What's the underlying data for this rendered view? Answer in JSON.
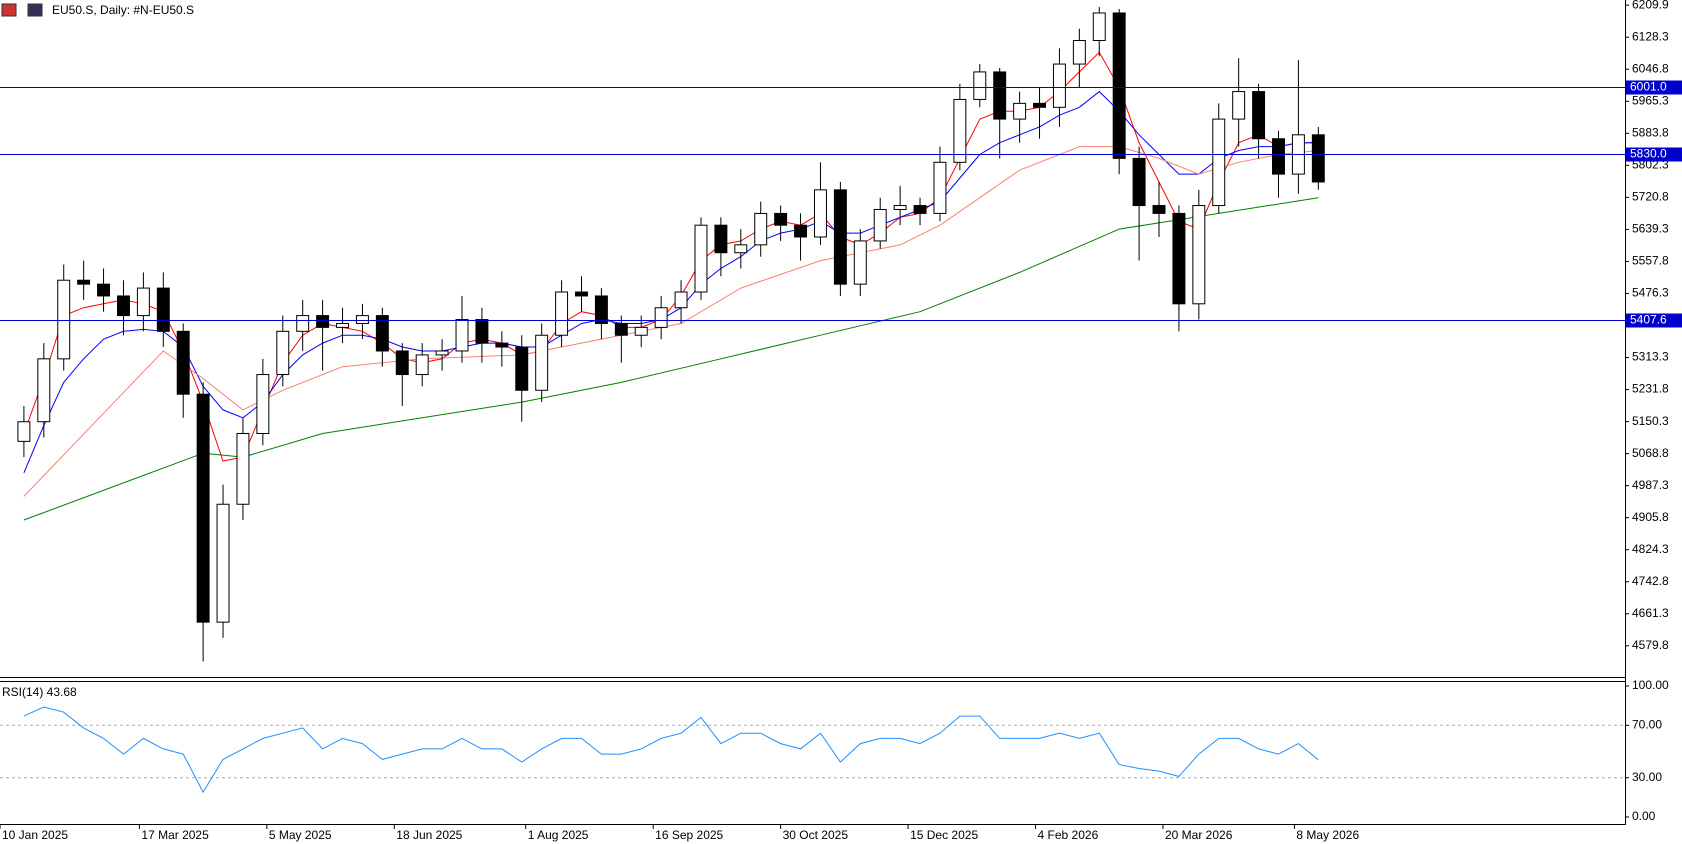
{
  "chart_data": [
    {
      "type": "candlestick",
      "title": "EU50.S, Daily:  #N-EU50.S",
      "x": [
        2,
        7,
        12,
        17,
        22,
        27,
        32,
        37,
        42,
        47,
        52,
        57,
        62,
        67,
        72,
        77,
        82,
        87,
        92,
        97,
        102,
        107,
        112,
        117,
        122,
        127,
        132,
        137,
        142,
        147,
        152,
        157,
        162,
        167,
        172,
        177,
        182,
        187,
        192,
        197,
        202,
        207,
        212,
        217,
        222,
        227,
        232,
        237,
        242,
        247,
        252,
        257,
        262,
        267,
        272,
        277,
        282,
        287,
        292,
        297,
        302,
        307,
        312,
        317,
        322,
        327
      ],
      "open": [
        5100,
        5150,
        5310,
        5510,
        5500,
        5470,
        5420,
        5490,
        5380,
        5220,
        4640,
        4940,
        5120,
        5270,
        5380,
        5420,
        5390,
        5400,
        5420,
        5330,
        5270,
        5320,
        5330,
        5410,
        5350,
        5340,
        5230,
        5370,
        5480,
        5470,
        5400,
        5370,
        5390,
        5440,
        5480,
        5650,
        5580,
        5600,
        5680,
        5650,
        5620,
        5740,
        5500,
        5610,
        5690,
        5700,
        5680,
        5810,
        5970,
        6040,
        5920,
        5960,
        5950,
        6060,
        6120,
        6190,
        5820,
        5700,
        5680,
        5450,
        5700,
        5920,
        5990,
        5870,
        5780,
        5880
      ],
      "high": [
        5190,
        5350,
        5550,
        5560,
        5540,
        5510,
        5530,
        5530,
        5400,
        5250,
        4990,
        5160,
        5310,
        5420,
        5460,
        5460,
        5440,
        5450,
        5440,
        5350,
        5350,
        5360,
        5470,
        5440,
        5380,
        5370,
        5400,
        5510,
        5520,
        5490,
        5420,
        5420,
        5470,
        5510,
        5670,
        5670,
        5640,
        5710,
        5700,
        5680,
        5810,
        5760,
        5640,
        5720,
        5750,
        5720,
        5850,
        6010,
        6060,
        6050,
        5990,
        6000,
        6100,
        6150,
        6205,
        6200,
        5850,
        5760,
        5700,
        5740,
        5960,
        6075,
        6010,
        5890,
        6070,
        5900
      ],
      "low": [
        5060,
        5110,
        5280,
        5460,
        5430,
        5370,
        5380,
        5340,
        5160,
        4540,
        4600,
        4900,
        5090,
        5240,
        5330,
        5280,
        5350,
        5360,
        5290,
        5190,
        5240,
        5280,
        5300,
        5300,
        5290,
        5150,
        5200,
        5340,
        5430,
        5360,
        5300,
        5340,
        5360,
        5400,
        5460,
        5520,
        5540,
        5570,
        5610,
        5560,
        5600,
        5470,
        5470,
        5590,
        5650,
        5650,
        5660,
        5790,
        5950,
        5820,
        5860,
        5870,
        5900,
        6000,
        6080,
        5780,
        5560,
        5620,
        5380,
        5410,
        5680,
        5850,
        5820,
        5720,
        5730,
        5740
      ],
      "close": [
        5150,
        5310,
        5510,
        5500,
        5470,
        5420,
        5490,
        5380,
        5220,
        4640,
        4940,
        5120,
        5270,
        5380,
        5420,
        5390,
        5400,
        5420,
        5330,
        5270,
        5320,
        5330,
        5410,
        5350,
        5340,
        5230,
        5370,
        5480,
        5470,
        5400,
        5370,
        5390,
        5440,
        5480,
        5650,
        5580,
        5600,
        5680,
        5650,
        5620,
        5740,
        5500,
        5610,
        5690,
        5700,
        5680,
        5810,
        5970,
        6040,
        5920,
        5960,
        5950,
        6060,
        6120,
        6190,
        5820,
        5700,
        5680,
        5450,
        5700,
        5920,
        5990,
        5870,
        5780,
        5880,
        5760
      ],
      "up_color": "#ffffff",
      "down_color": "#000000",
      "overlays": [
        {
          "color": "#ff0000",
          "values": [
            5120,
            5260,
            5420,
            5440,
            5450,
            5460,
            5450,
            5430,
            5330,
            5200,
            5050,
            5060,
            5180,
            5300,
            5370,
            5400,
            5390,
            5380,
            5350,
            5310,
            5300,
            5310,
            5350,
            5360,
            5350,
            5320,
            5330,
            5400,
            5430,
            5420,
            5390,
            5390,
            5410,
            5470,
            5560,
            5600,
            5610,
            5640,
            5660,
            5650,
            5680,
            5620,
            5600,
            5630,
            5670,
            5680,
            5720,
            5820,
            5920,
            5940,
            5940,
            5950,
            5990,
            6040,
            6090,
            6000,
            5860,
            5760,
            5660,
            5640,
            5760,
            5860,
            5880,
            5850,
            5860,
            5860
          ]
        },
        {
          "color": "#0000ff",
          "values": [
            5020,
            5140,
            5250,
            5310,
            5360,
            5380,
            5385,
            5380,
            5340,
            5240,
            5180,
            5160,
            5200,
            5270,
            5320,
            5350,
            5370,
            5370,
            5360,
            5340,
            5330,
            5330,
            5340,
            5350,
            5350,
            5340,
            5340,
            5370,
            5400,
            5410,
            5400,
            5400,
            5410,
            5440,
            5500,
            5540,
            5570,
            5610,
            5630,
            5640,
            5660,
            5630,
            5630,
            5650,
            5670,
            5690,
            5710,
            5770,
            5830,
            5860,
            5880,
            5900,
            5930,
            5950,
            5990,
            5940,
            5880,
            5830,
            5780,
            5780,
            5820,
            5840,
            5850,
            5850,
            5860,
            5860
          ]
        },
        {
          "color": "#fa8072",
          "x": [
            2,
            37,
            47,
            57,
            67,
            82,
            102,
            127,
            152,
            167,
            182,
            202,
            222,
            232,
            242,
            252,
            267,
            277,
            287,
            297,
            307,
            317,
            327
          ],
          "values": [
            4960,
            5330,
            5260,
            5180,
            5230,
            5290,
            5310,
            5320,
            5370,
            5400,
            5490,
            5560,
            5600,
            5650,
            5720,
            5790,
            5850,
            5850,
            5820,
            5780,
            5810,
            5830,
            5840
          ]
        },
        {
          "color": "#008000",
          "x": [
            2,
            47,
            57,
            77,
            102,
            127,
            152,
            177,
            202,
            227,
            252,
            277,
            302,
            327
          ],
          "values": [
            4900,
            5070,
            5060,
            5120,
            5160,
            5200,
            5250,
            5310,
            5370,
            5430,
            5530,
            5640,
            5680,
            5720
          ]
        }
      ],
      "levels": [
        {
          "value": 6001.0,
          "label": "6001.0"
        },
        {
          "value": 5830.0,
          "label": "5830.0"
        },
        {
          "value": 5407.6,
          "label": "5407.6"
        }
      ],
      "level_color": "#0000cc",
      "xlim": [
        -4,
        404
      ],
      "xticks": [
        {
          "value": -4,
          "label": "10 Jan 2025"
        },
        {
          "value": 31,
          "label": "17 Mar 2025"
        },
        {
          "value": 63,
          "label": "5 May 2025"
        },
        {
          "value": 95,
          "label": "18 Jun 2025"
        },
        {
          "value": 128,
          "label": "1 Aug 2025"
        },
        {
          "value": 160,
          "label": "16 Sep 2025"
        },
        {
          "value": 192,
          "label": "30 Oct 2025"
        },
        {
          "value": 224,
          "label": "15 Dec 2025"
        },
        {
          "value": 256,
          "label": "4 Feb 2026"
        },
        {
          "value": 288,
          "label": "20 Mar 2026"
        },
        {
          "value": 321,
          "label": "8 May 2026"
        }
      ],
      "ylim": [
        4503,
        6223
      ],
      "yticks": [
        6209.9,
        6128.3,
        6046.8,
        5965.3,
        5883.8,
        5802.3,
        5720.8,
        5639.3,
        5557.8,
        5476.3,
        5313.3,
        5231.8,
        5150.3,
        5068.8,
        4987.3,
        4905.8,
        4824.3,
        4742.8,
        4661.3,
        4579.8
      ]
    },
    {
      "type": "line",
      "title": "RSI(14) 43.68",
      "color": "#1e90ff",
      "x": [
        2,
        7,
        12,
        17,
        22,
        27,
        32,
        37,
        42,
        47,
        52,
        57,
        62,
        67,
        72,
        77,
        82,
        87,
        92,
        97,
        102,
        107,
        112,
        117,
        122,
        127,
        132,
        137,
        142,
        147,
        152,
        157,
        162,
        167,
        172,
        177,
        182,
        187,
        192,
        197,
        202,
        207,
        212,
        217,
        222,
        227,
        232,
        237,
        242,
        247,
        252,
        257,
        262,
        267,
        272,
        277,
        282,
        287,
        292,
        297,
        302,
        307,
        312,
        317,
        322,
        327
      ],
      "values": [
        77,
        84,
        80,
        68,
        60,
        48,
        60,
        52,
        48,
        19,
        44,
        52,
        60,
        64,
        68,
        52,
        60,
        56,
        44,
        48,
        52,
        52,
        60,
        52,
        52,
        42,
        52,
        60,
        60,
        48,
        48,
        52,
        60,
        64,
        76,
        56,
        64,
        64,
        56,
        52,
        64,
        42,
        56,
        60,
        60,
        56,
        64,
        77,
        77,
        60,
        60,
        60,
        64,
        60,
        64,
        40,
        37,
        35,
        31,
        48,
        60,
        60,
        52,
        48,
        56,
        43.68
      ],
      "xlim": [
        -4,
        404
      ],
      "ylim": [
        0,
        100
      ],
      "yticks": [
        {
          "value": 100,
          "label": "100.00"
        },
        {
          "value": 70,
          "label": "70.00"
        },
        {
          "value": 30,
          "label": "30.00"
        },
        {
          "value": 0,
          "label": "0.00"
        }
      ],
      "grid": "dashed"
    }
  ]
}
